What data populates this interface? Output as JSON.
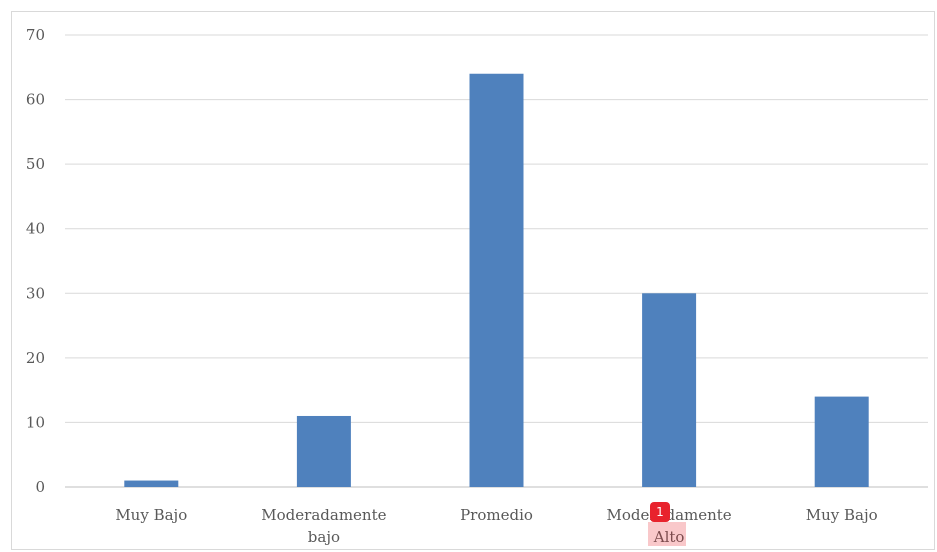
{
  "chart_data": {
    "type": "bar",
    "categories": [
      [
        "Muy Bajo"
      ],
      [
        "Moderadamente",
        "bajo"
      ],
      [
        "Promedio"
      ],
      [
        "Moderadamente",
        "Alto"
      ],
      [
        "Muy Bajo"
      ]
    ],
    "values": [
      1,
      11,
      64,
      30,
      14
    ],
    "title": "",
    "xlabel": "",
    "ylabel": "",
    "ylim": [
      0,
      70
    ],
    "yticks": [
      0,
      10,
      20,
      30,
      40,
      50,
      60,
      70
    ],
    "grid": true,
    "legend": "none",
    "bar_color": "#4f81bd"
  },
  "annotation": {
    "comment_marker": "1",
    "highlight_color": "#e8232d"
  }
}
